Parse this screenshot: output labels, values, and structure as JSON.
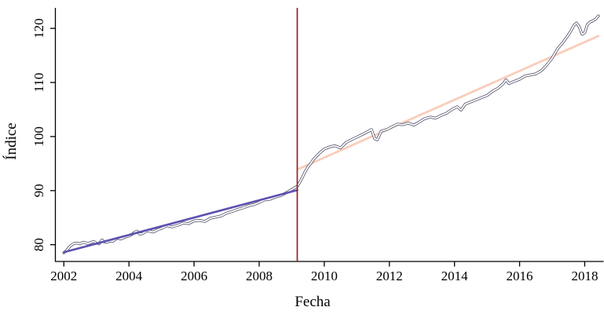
{
  "chart_data": {
    "type": "line",
    "title": "",
    "xlabel": "Fecha",
    "ylabel": "Índice",
    "xlim": [
      2001.74,
      2018.58
    ],
    "ylim": [
      76.9,
      123.8
    ],
    "x_ticks": [
      2002,
      2004,
      2006,
      2008,
      2010,
      2012,
      2014,
      2016,
      2018
    ],
    "y_ticks": [
      80,
      90,
      100,
      110,
      120
    ],
    "grid": false,
    "legend_position": "none",
    "axis_color": "#000000",
    "vline": {
      "x": 2009.17,
      "color": "#9b1c1c"
    },
    "series": [
      {
        "name": "indice-series",
        "style": "white-line-dark-outline",
        "outline_color": "#45455e",
        "core_color": "#ffffff",
        "points": [
          [
            2002.0,
            78.5
          ],
          [
            2002.08,
            78.9
          ],
          [
            2002.17,
            79.6
          ],
          [
            2002.25,
            80.0
          ],
          [
            2002.33,
            80.25
          ],
          [
            2002.42,
            80.3
          ],
          [
            2002.5,
            80.15
          ],
          [
            2002.58,
            80.45
          ],
          [
            2002.67,
            80.35
          ],
          [
            2002.75,
            80.2
          ],
          [
            2002.83,
            80.45
          ],
          [
            2002.92,
            80.6
          ],
          [
            2003.0,
            80.3
          ],
          [
            2003.08,
            80.15
          ],
          [
            2003.17,
            80.9
          ],
          [
            2003.25,
            80.5
          ],
          [
            2003.33,
            80.45
          ],
          [
            2003.42,
            80.7
          ],
          [
            2003.5,
            80.6
          ],
          [
            2003.58,
            81.0
          ],
          [
            2003.67,
            81.2
          ],
          [
            2003.75,
            81.05
          ],
          [
            2003.83,
            81.25
          ],
          [
            2003.92,
            81.5
          ],
          [
            2004.0,
            81.6
          ],
          [
            2004.08,
            81.85
          ],
          [
            2004.17,
            82.3
          ],
          [
            2004.25,
            82.5
          ],
          [
            2004.33,
            81.95
          ],
          [
            2004.42,
            82.05
          ],
          [
            2004.5,
            82.4
          ],
          [
            2004.58,
            82.6
          ],
          [
            2004.67,
            82.45
          ],
          [
            2004.75,
            82.35
          ],
          [
            2004.83,
            82.6
          ],
          [
            2004.92,
            82.85
          ],
          [
            2005.0,
            83.0
          ],
          [
            2005.17,
            83.5
          ],
          [
            2005.33,
            83.3
          ],
          [
            2005.5,
            83.6
          ],
          [
            2005.67,
            84.0
          ],
          [
            2005.83,
            83.9
          ],
          [
            2006.0,
            84.4
          ],
          [
            2006.17,
            84.5
          ],
          [
            2006.33,
            84.3
          ],
          [
            2006.5,
            84.9
          ],
          [
            2006.67,
            85.1
          ],
          [
            2006.83,
            85.3
          ],
          [
            2007.0,
            85.85
          ],
          [
            2007.17,
            86.15
          ],
          [
            2007.33,
            86.5
          ],
          [
            2007.5,
            86.8
          ],
          [
            2007.67,
            87.2
          ],
          [
            2007.83,
            87.4
          ],
          [
            2008.0,
            87.8
          ],
          [
            2008.17,
            88.3
          ],
          [
            2008.33,
            88.4
          ],
          [
            2008.5,
            88.8
          ],
          [
            2008.67,
            89.1
          ],
          [
            2008.83,
            89.6
          ],
          [
            2009.0,
            90.2
          ],
          [
            2009.08,
            90.5
          ],
          [
            2009.17,
            90.8
          ],
          [
            2009.25,
            91.6
          ],
          [
            2009.33,
            92.5
          ],
          [
            2009.42,
            93.6
          ],
          [
            2009.5,
            94.4
          ],
          [
            2009.58,
            95.0
          ],
          [
            2009.67,
            95.8
          ],
          [
            2009.75,
            96.3
          ],
          [
            2009.83,
            96.8
          ],
          [
            2009.92,
            97.3
          ],
          [
            2010.0,
            97.7
          ],
          [
            2010.17,
            98.1
          ],
          [
            2010.33,
            98.3
          ],
          [
            2010.5,
            97.9
          ],
          [
            2010.67,
            98.9
          ],
          [
            2010.83,
            99.4
          ],
          [
            2011.0,
            99.9
          ],
          [
            2011.17,
            100.4
          ],
          [
            2011.33,
            100.9
          ],
          [
            2011.45,
            101.3
          ],
          [
            2011.55,
            99.6
          ],
          [
            2011.63,
            99.4
          ],
          [
            2011.75,
            101.0
          ],
          [
            2011.92,
            101.3
          ],
          [
            2012.08,
            101.8
          ],
          [
            2012.25,
            102.3
          ],
          [
            2012.42,
            102.2
          ],
          [
            2012.58,
            102.5
          ],
          [
            2012.75,
            102.1
          ],
          [
            2012.92,
            102.7
          ],
          [
            2013.08,
            103.3
          ],
          [
            2013.25,
            103.6
          ],
          [
            2013.42,
            103.4
          ],
          [
            2013.58,
            103.9
          ],
          [
            2013.75,
            104.3
          ],
          [
            2013.92,
            105.0
          ],
          [
            2014.08,
            105.5
          ],
          [
            2014.2,
            104.9
          ],
          [
            2014.33,
            106.0
          ],
          [
            2014.5,
            106.4
          ],
          [
            2014.67,
            106.8
          ],
          [
            2014.83,
            107.2
          ],
          [
            2015.0,
            107.6
          ],
          [
            2015.17,
            108.4
          ],
          [
            2015.33,
            108.9
          ],
          [
            2015.5,
            109.8
          ],
          [
            2015.58,
            110.5
          ],
          [
            2015.67,
            109.8
          ],
          [
            2015.83,
            110.2
          ],
          [
            2016.0,
            110.6
          ],
          [
            2016.17,
            111.2
          ],
          [
            2016.33,
            111.4
          ],
          [
            2016.5,
            111.6
          ],
          [
            2016.67,
            112.2
          ],
          [
            2016.83,
            113.2
          ],
          [
            2017.0,
            114.5
          ],
          [
            2017.17,
            116.3
          ],
          [
            2017.33,
            117.4
          ],
          [
            2017.5,
            118.8
          ],
          [
            2017.58,
            119.6
          ],
          [
            2017.67,
            120.6
          ],
          [
            2017.75,
            121.0
          ],
          [
            2017.83,
            120.3
          ],
          [
            2017.92,
            118.9
          ],
          [
            2018.0,
            119.2
          ],
          [
            2018.08,
            120.7
          ],
          [
            2018.17,
            121.2
          ],
          [
            2018.25,
            121.4
          ],
          [
            2018.33,
            121.7
          ],
          [
            2018.42,
            122.3
          ]
        ]
      },
      {
        "name": "pre-break-trend",
        "style": "solid",
        "color": "#5b51b0",
        "points": [
          [
            2002.0,
            78.6
          ],
          [
            2009.17,
            90.1
          ]
        ]
      },
      {
        "name": "post-break-trend",
        "style": "solid",
        "color": "#f9cdba",
        "points": [
          [
            2009.21,
            94.0
          ],
          [
            2018.42,
            118.6
          ]
        ]
      }
    ]
  }
}
